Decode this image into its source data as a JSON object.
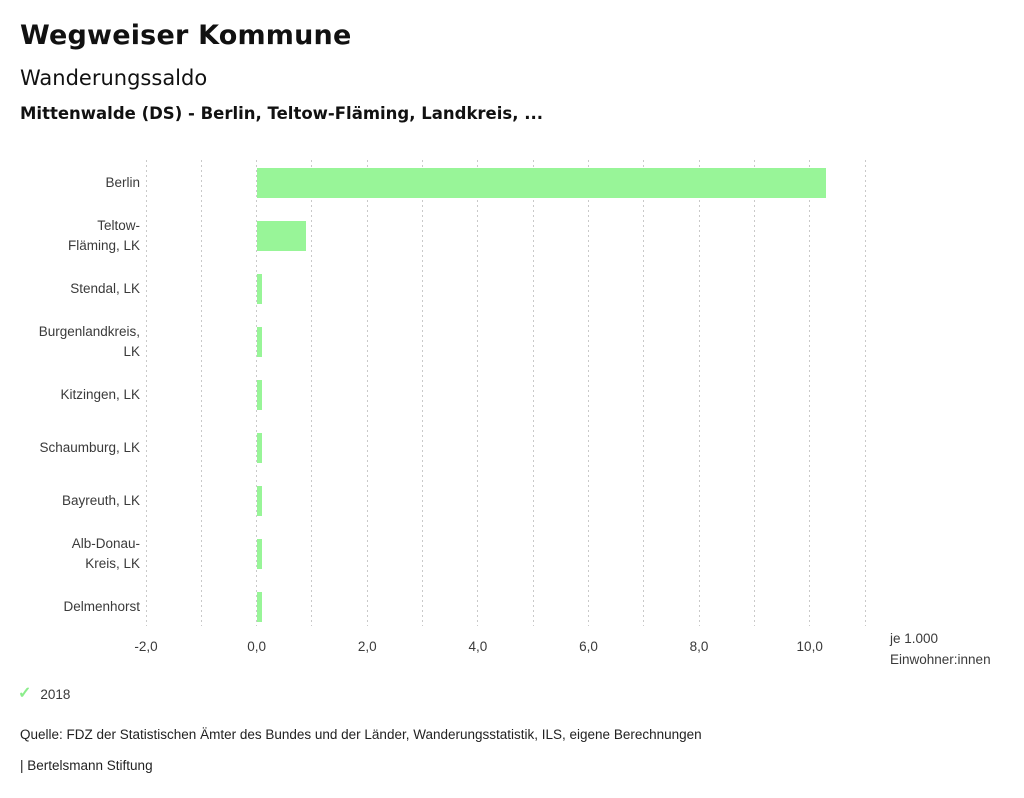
{
  "header": {
    "title": "Wegweiser Kommune",
    "subtitle": "Wanderungssaldo",
    "scope": "Mittenwalde (DS) - Berlin, Teltow-Fläming, Landkreis, ..."
  },
  "chart_data": {
    "type": "bar",
    "orientation": "horizontal",
    "title": "Wanderungssaldo",
    "subtitle": "Mittenwalde (DS) - Berlin, Teltow-Fläming, Landkreis, ...",
    "categories": [
      "Berlin",
      "Teltow-Fläming, LK",
      "Stendal, LK",
      "Burgenlandkreis, LK",
      "Kitzingen, LK",
      "Schaumburg, LK",
      "Bayreuth, LK",
      "Alb-Donau-Kreis, LK",
      "Delmenhorst"
    ],
    "category_display": [
      "Berlin",
      "Teltow-\nFläming, LK",
      "Stendal, LK",
      "Burgenlandkreis,\nLK",
      "Kitzingen, LK",
      "Schaumburg, LK",
      "Bayreuth, LK",
      "Alb-Donau-\nKreis, LK",
      "Delmenhorst"
    ],
    "series": [
      {
        "name": "2018",
        "values": [
          10.3,
          0.9,
          0.1,
          0.1,
          0.1,
          0.1,
          0.1,
          0.1,
          0.1
        ]
      }
    ],
    "xlabel": "je 1.000 Einwohner:innen",
    "unit_label": "je 1.000\nEinwohner:innen",
    "ylabel": "",
    "xlim": [
      -2,
      11
    ],
    "gridline_step": 1,
    "grid": "dotted-vertical",
    "legend_position": "bottom-left",
    "xticks": [
      {
        "value": -2,
        "label": "-2,0"
      },
      {
        "value": 0,
        "label": "0,0"
      },
      {
        "value": 2,
        "label": "2,0"
      },
      {
        "value": 4,
        "label": "4,0"
      },
      {
        "value": 6,
        "label": "6,0"
      },
      {
        "value": 8,
        "label": "8,0"
      },
      {
        "value": 10,
        "label": "10,0"
      }
    ],
    "bar_color": "#98f598",
    "gridline_color": "#c9c9c9"
  },
  "legend": {
    "check_icon": "✓",
    "year": "2018",
    "active_color": "#8ced8c"
  },
  "footer": {
    "source": "Quelle: FDZ der Statistischen Ämter des Bundes und der Länder, Wanderungsstatistik, ILS, eigene Berechnungen",
    "branding": "| Bertelsmann Stiftung"
  },
  "colors": {
    "accent_green": "#98f598",
    "text_heading": "#111111",
    "text_body": "#3a3a3a"
  }
}
